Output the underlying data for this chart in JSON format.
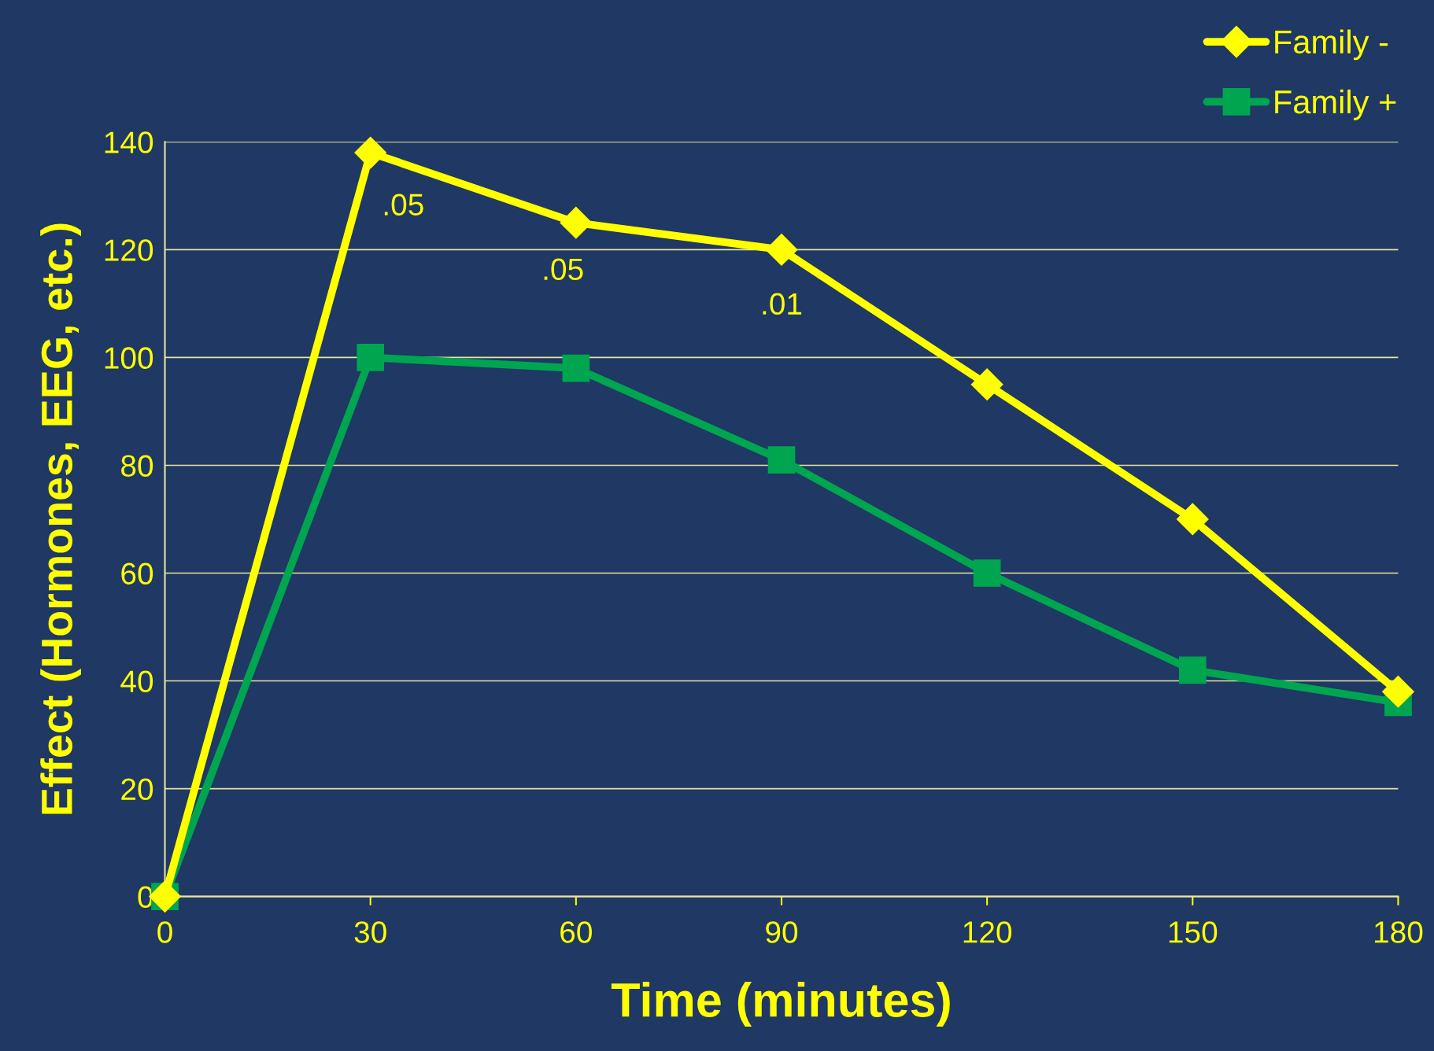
{
  "chart_data": {
    "type": "line",
    "xlabel": "Time (minutes)",
    "ylabel": "Effect (Hormones, EEG, etc.)",
    "x": [
      0,
      30,
      60,
      90,
      120,
      150,
      180
    ],
    "series": [
      {
        "name": "Family -",
        "color": "#ffff00",
        "marker": "diamond",
        "values": [
          0,
          138,
          125,
          120,
          95,
          70,
          38
        ]
      },
      {
        "name": "Family +",
        "color": "#00a550",
        "marker": "square",
        "values": [
          0,
          100,
          98,
          81,
          60,
          42,
          36
        ]
      }
    ],
    "xlim": [
      0,
      180
    ],
    "xticks": [
      0,
      30,
      60,
      90,
      120,
      150,
      180
    ],
    "ylim": [
      0,
      140
    ],
    "yticks": [
      0,
      20,
      40,
      60,
      80,
      100,
      120,
      140
    ],
    "annotations": [
      {
        "text": ".05",
        "x": 30,
        "y": 138
      },
      {
        "text": ".05",
        "x": 60,
        "y": 125
      },
      {
        "text": ".01",
        "x": 90,
        "y": 120
      }
    ],
    "grid": "y",
    "legend": "top right",
    "line_style": "solid"
  }
}
